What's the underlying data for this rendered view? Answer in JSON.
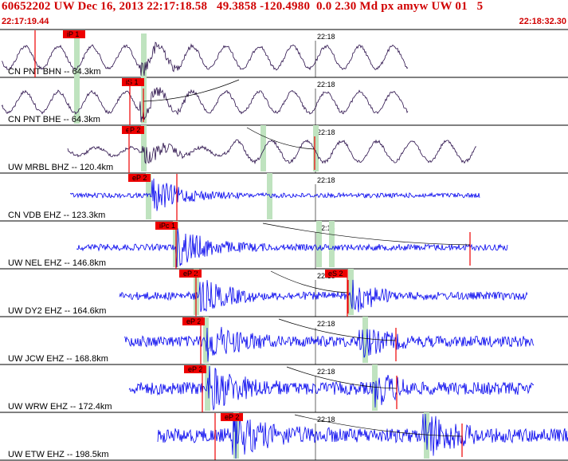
{
  "header": {
    "title": "60652202 UW Dec 16, 2013 22:17:18.58   49.3858 -120.4980  0.0 2.30 Md px amyw UW 01   5",
    "start_time": "22:17:19.44",
    "end_time": "22:18:32.30"
  },
  "minute_label": "22:18",
  "traces": [
    {
      "label": "CN PNT BHN -- 64.3km",
      "pick": "iP 1",
      "color": "#2a0f4a",
      "kind": "wave"
    },
    {
      "label": "CN PNT BHE -- 64.3km",
      "pick": "iS 1",
      "color": "#2a0f4a",
      "kind": "wave"
    },
    {
      "label": "UW MRBL BHZ -- 120.4km",
      "pick": "eP 2",
      "color": "#2a0f4a",
      "kind": "wave"
    },
    {
      "label": "CN VDB EHZ -- 123.3km",
      "pick": "eP 2",
      "color": "#0000ee",
      "kind": "noise"
    },
    {
      "label": "UW NEL EHZ -- 146.8km",
      "pick": "iPc 1",
      "color": "#0000ee",
      "kind": "noise"
    },
    {
      "label": "UW DY2 EHZ -- 164.6km",
      "pick": "eP 2",
      "pick2": "eS 2",
      "color": "#0000ee",
      "kind": "noise"
    },
    {
      "label": "UW JCW EHZ -- 168.8km",
      "pick": "eP 2",
      "color": "#0000ee",
      "kind": "noise"
    },
    {
      "label": "UW WRW EHZ -- 172.4km",
      "pick": "eP 2",
      "color": "#0000ee",
      "kind": "noise"
    },
    {
      "label": "UW ETW EHZ -- 198.5km",
      "pick": "eP 2",
      "color": "#0000ee",
      "kind": "noise"
    }
  ],
  "colors": {
    "header": "#d00000",
    "pick_box": "#ee0000",
    "window_band": "#bfe3bf",
    "trace_purple": "#2a0f4a",
    "trace_blue": "#0000ee"
  }
}
